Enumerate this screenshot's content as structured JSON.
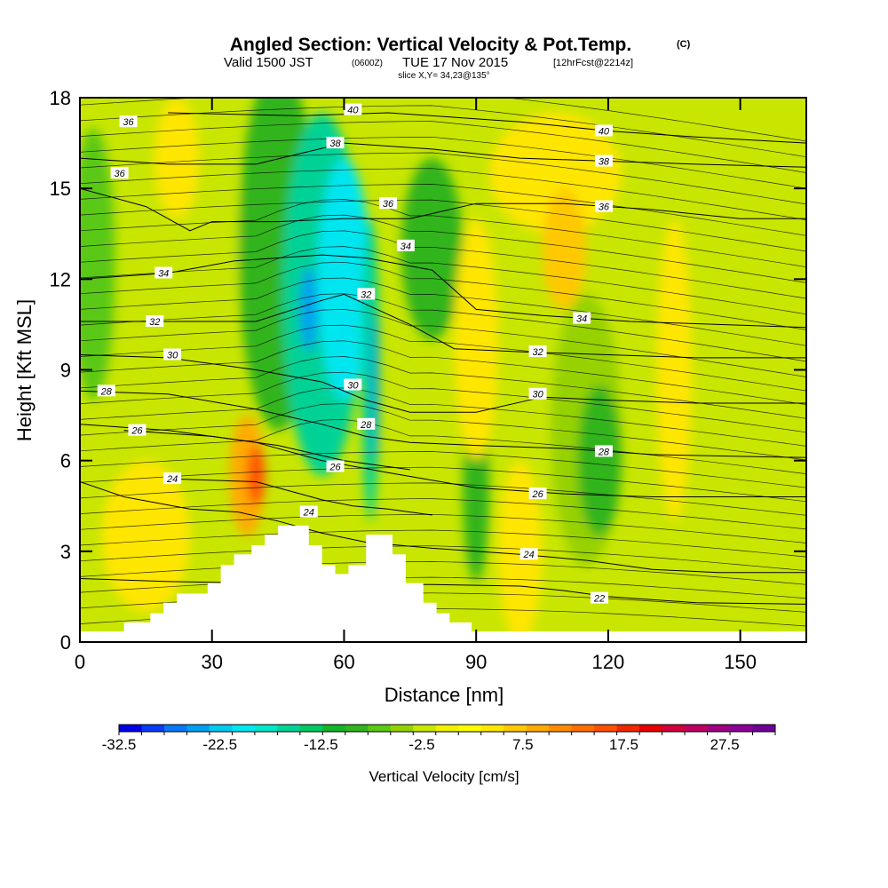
{
  "title": {
    "main": "Angled Section: Vertical Velocity & Pot.Temp.",
    "main_unit": "(C)",
    "valid_prefix": "Valid 1500 JST",
    "valid_zone": "(0600Z)",
    "valid_date": "TUE 17 Nov 2015",
    "valid_fcst": "[12hrFcst@2214z]",
    "slice": "slice X,Y= 34,23@135°"
  },
  "chart_data": {
    "type": "heatmap",
    "xlabel": "Distance [nm]",
    "ylabel": "Height [Kft MSL]",
    "xlim": [
      0,
      165
    ],
    "ylim": [
      0,
      18
    ],
    "x_ticks": [
      0,
      30,
      60,
      90,
      120,
      150
    ],
    "y_ticks": [
      0,
      3,
      6,
      9,
      12,
      15,
      18
    ],
    "colorbar": {
      "title": "Vertical Velocity [cm/s]",
      "tick_labels": [
        "-32.5",
        "-22.5",
        "-12.5",
        "-2.5",
        "7.5",
        "17.5",
        "27.5"
      ],
      "tick_values": [
        -32.5,
        -22.5,
        -12.5,
        -2.5,
        7.5,
        17.5,
        27.5
      ],
      "min": -32.5,
      "max": 32.5,
      "step": 2.5,
      "colors": [
        "#0000e6",
        "#0a3cf5",
        "#0a78f5",
        "#00a0f0",
        "#00c8f0",
        "#00e6f0",
        "#00e6c8",
        "#00d296",
        "#00c864",
        "#14b428",
        "#32b41e",
        "#5ac814",
        "#96d200",
        "#c8e600",
        "#f0f000",
        "#ffff00",
        "#ffe600",
        "#ffc800",
        "#ffaa00",
        "#ff8c00",
        "#ff6e00",
        "#ff5000",
        "#f02800",
        "#e60000",
        "#d2003c",
        "#be0064",
        "#a00082",
        "#8c0096",
        "#6e0096"
      ]
    },
    "theta_contours": [
      {
        "label": "22",
        "points": [
          [
            0,
            2.1
          ],
          [
            20,
            2.0
          ],
          [
            40,
            1.95
          ],
          [
            60,
            1.9
          ],
          [
            80,
            1.9
          ],
          [
            100,
            1.85
          ],
          [
            110,
            1.7
          ],
          [
            120,
            1.5
          ],
          [
            140,
            1.3
          ],
          [
            165,
            1.25
          ]
        ],
        "label_at": [
          118,
          1.45
        ]
      },
      {
        "label": "24",
        "points": [
          [
            0,
            5.3
          ],
          [
            10,
            4.8
          ],
          [
            25,
            4.4
          ],
          [
            36,
            4.3
          ],
          [
            45,
            4.0
          ],
          [
            55,
            3.6
          ],
          [
            65,
            3.3
          ],
          [
            80,
            3.1
          ],
          [
            100,
            2.9
          ],
          [
            115,
            2.7
          ],
          [
            130,
            2.4
          ],
          [
            145,
            2.3
          ],
          [
            165,
            2.3
          ]
        ],
        "label_at": [
          102,
          2.9
        ]
      },
      {
        "label": "24",
        "points": [
          [
            20,
            5.4
          ],
          [
            40,
            5.3
          ],
          [
            55,
            4.7
          ],
          [
            62,
            4.5
          ],
          [
            70,
            4.4
          ],
          [
            80,
            4.2
          ]
        ],
        "label_at": [
          52,
          4.3
        ]
      },
      {
        "label": "26",
        "points": [
          [
            0,
            7.2
          ],
          [
            20,
            7.0
          ],
          [
            40,
            6.6
          ],
          [
            55,
            6.0
          ],
          [
            70,
            5.6
          ],
          [
            90,
            5.1
          ],
          [
            110,
            4.9
          ],
          [
            130,
            4.8
          ],
          [
            165,
            4.8
          ]
        ],
        "label_at": [
          104,
          4.9
        ]
      },
      {
        "label": "26",
        "points": [
          [
            10,
            7.0
          ],
          [
            30,
            6.8
          ],
          [
            45,
            6.5
          ],
          [
            60,
            6.0
          ],
          [
            75,
            5.7
          ]
        ],
        "label_at": [
          58,
          5.8
        ]
      },
      {
        "label": "28",
        "points": [
          [
            0,
            8.3
          ],
          [
            20,
            8.2
          ],
          [
            40,
            7.7
          ],
          [
            55,
            7.2
          ],
          [
            65,
            6.8
          ],
          [
            75,
            6.6
          ],
          [
            90,
            6.5
          ],
          [
            110,
            6.4
          ],
          [
            130,
            6.2
          ],
          [
            165,
            6.1
          ]
        ],
        "label_at": [
          119,
          6.3
        ]
      },
      {
        "label": "30",
        "points": [
          [
            0,
            9.5
          ],
          [
            20,
            9.4
          ],
          [
            40,
            9.0
          ],
          [
            55,
            8.6
          ],
          [
            65,
            8.0
          ],
          [
            75,
            7.6
          ],
          [
            90,
            7.6
          ],
          [
            105,
            8.1
          ],
          [
            120,
            8.0
          ],
          [
            140,
            7.9
          ],
          [
            165,
            7.9
          ]
        ],
        "label_at": [
          104,
          8.2
        ]
      },
      {
        "label": "32",
        "points": [
          [
            0,
            10.6
          ],
          [
            20,
            10.6
          ],
          [
            40,
            10.6
          ],
          [
            55,
            11.3
          ],
          [
            60,
            11.5
          ],
          [
            75,
            10.5
          ],
          [
            85,
            9.7
          ],
          [
            100,
            9.6
          ],
          [
            120,
            9.5
          ],
          [
            140,
            9.4
          ],
          [
            165,
            9.4
          ]
        ],
        "label_at": [
          104,
          9.6
        ]
      },
      {
        "label": "34",
        "points": [
          [
            0,
            12.0
          ],
          [
            20,
            12.2
          ],
          [
            35,
            12.6
          ],
          [
            55,
            12.8
          ],
          [
            65,
            12.7
          ],
          [
            80,
            12.3
          ],
          [
            90,
            11.0
          ],
          [
            105,
            10.8
          ],
          [
            125,
            10.6
          ],
          [
            145,
            10.5
          ],
          [
            165,
            10.4
          ]
        ],
        "label_at": [
          114,
          10.7
        ]
      },
      {
        "label": "36",
        "points": [
          [
            0,
            15.0
          ],
          [
            15,
            14.4
          ],
          [
            25,
            13.6
          ],
          [
            30,
            13.9
          ],
          [
            45,
            13.9
          ],
          [
            60,
            14.0
          ],
          [
            75,
            14.0
          ],
          [
            90,
            14.5
          ],
          [
            110,
            14.5
          ],
          [
            130,
            14.3
          ],
          [
            150,
            14.0
          ],
          [
            165,
            14.0
          ]
        ],
        "label_at": [
          119,
          14.4
        ]
      },
      {
        "label": "38",
        "points": [
          [
            0,
            16.0
          ],
          [
            20,
            15.8
          ],
          [
            40,
            15.8
          ],
          [
            60,
            16.5
          ],
          [
            80,
            16.3
          ],
          [
            100,
            16.0
          ],
          [
            120,
            15.9
          ],
          [
            140,
            15.8
          ],
          [
            165,
            15.7
          ]
        ],
        "label_at": [
          119,
          15.9
        ]
      },
      {
        "label": "40",
        "points": [
          [
            20,
            17.5
          ],
          [
            50,
            17.4
          ],
          [
            70,
            17.5
          ],
          [
            100,
            17.2
          ],
          [
            120,
            16.9
          ],
          [
            140,
            16.7
          ],
          [
            165,
            16.5
          ]
        ],
        "label_at": [
          119,
          16.9
        ]
      }
    ],
    "extra_contour_labels": [
      {
        "label": "36",
        "at": [
          11,
          17.2
        ]
      },
      {
        "label": "36",
        "at": [
          9,
          15.5
        ]
      },
      {
        "label": "34",
        "at": [
          19,
          12.2
        ]
      },
      {
        "label": "32",
        "at": [
          17,
          10.6
        ]
      },
      {
        "label": "30",
        "at": [
          21,
          9.5
        ]
      },
      {
        "label": "28",
        "at": [
          6,
          8.3
        ]
      },
      {
        "label": "26",
        "at": [
          13,
          7.0
        ]
      },
      {
        "label": "24",
        "at": [
          21,
          5.4
        ]
      },
      {
        "label": "40",
        "at": [
          62,
          17.6
        ]
      },
      {
        "label": "38",
        "at": [
          58,
          16.5
        ]
      },
      {
        "label": "36",
        "at": [
          70,
          14.5
        ]
      },
      {
        "label": "34",
        "at": [
          74,
          13.1
        ]
      },
      {
        "label": "32",
        "at": [
          65,
          11.5
        ]
      },
      {
        "label": "30",
        "at": [
          62,
          8.5
        ]
      },
      {
        "label": "28",
        "at": [
          65,
          7.2
        ]
      }
    ],
    "terrain_heights_kft": [
      [
        0,
        0.35
      ],
      [
        10,
        0.35
      ],
      [
        10,
        0.65
      ],
      [
        16,
        0.65
      ],
      [
        16,
        0.95
      ],
      [
        19,
        0.95
      ],
      [
        19,
        1.3
      ],
      [
        22,
        1.3
      ],
      [
        22,
        1.6
      ],
      [
        29,
        1.6
      ],
      [
        29,
        1.95
      ],
      [
        32,
        1.95
      ],
      [
        32,
        2.55
      ],
      [
        35,
        2.55
      ],
      [
        35,
        2.9
      ],
      [
        39,
        2.9
      ],
      [
        39,
        3.2
      ],
      [
        42,
        3.2
      ],
      [
        42,
        3.55
      ],
      [
        45,
        3.55
      ],
      [
        45,
        3.85
      ],
      [
        52,
        3.85
      ],
      [
        52,
        3.2
      ],
      [
        55,
        3.2
      ],
      [
        55,
        2.55
      ],
      [
        58,
        2.55
      ],
      [
        58,
        2.25
      ],
      [
        61,
        2.25
      ],
      [
        61,
        2.55
      ],
      [
        65,
        2.55
      ],
      [
        65,
        3.55
      ],
      [
        71,
        3.55
      ],
      [
        71,
        2.9
      ],
      [
        74,
        2.9
      ],
      [
        74,
        1.95
      ],
      [
        78,
        1.95
      ],
      [
        78,
        1.3
      ],
      [
        81,
        1.3
      ],
      [
        81,
        0.95
      ],
      [
        84,
        0.95
      ],
      [
        84,
        0.65
      ],
      [
        89,
        0.65
      ],
      [
        89,
        0.35
      ],
      [
        165,
        0.35
      ]
    ],
    "velocity_features": [
      {
        "cx": 3,
        "cy": 12.5,
        "rx": 5,
        "ry": 4.5,
        "value": -7.5
      },
      {
        "cx": 30,
        "cy": 13.5,
        "rx": 6,
        "ry": 4.0,
        "value": -2.5
      },
      {
        "cx": 45,
        "cy": 13.0,
        "rx": 9,
        "ry": 6.0,
        "value": -10.0
      },
      {
        "cx": 55,
        "cy": 11.5,
        "rx": 9,
        "ry": 6.0,
        "value": -15.0
      },
      {
        "cx": 60,
        "cy": 12.0,
        "rx": 6,
        "ry": 4.0,
        "value": -20.0
      },
      {
        "cx": 52,
        "cy": 11.0,
        "rx": 2,
        "ry": 1.4,
        "value": -25.0
      },
      {
        "cx": 66,
        "cy": 9.0,
        "rx": 2,
        "ry": 5.0,
        "value": -15.0
      },
      {
        "cx": 67,
        "cy": 8.5,
        "rx": 0.8,
        "ry": 2.5,
        "value": -25.0
      },
      {
        "cx": 80,
        "cy": 13.0,
        "rx": 7,
        "ry": 3.0,
        "value": -10.0
      },
      {
        "cx": 90,
        "cy": 5.0,
        "rx": 3,
        "ry": 3.0,
        "value": -10.0
      },
      {
        "cx": 115,
        "cy": 7.0,
        "rx": 8,
        "ry": 4.5,
        "value": -5.0
      },
      {
        "cx": 118,
        "cy": 6.0,
        "rx": 5,
        "ry": 2.5,
        "value": -10.0
      },
      {
        "cx": 150,
        "cy": 14.0,
        "rx": 12,
        "ry": 3.0,
        "value": -2.5
      },
      {
        "cx": 22,
        "cy": 16.0,
        "rx": 5,
        "ry": 2.0,
        "value": 5.0
      },
      {
        "cx": 38,
        "cy": 5.5,
        "rx": 4,
        "ry": 2.0,
        "value": 10.0
      },
      {
        "cx": 40,
        "cy": 5.5,
        "rx": 2,
        "ry": 1.0,
        "value": 15.0
      },
      {
        "cx": 15,
        "cy": 3.5,
        "rx": 10,
        "ry": 2.5,
        "value": 5.0
      },
      {
        "cx": 90,
        "cy": 10.0,
        "rx": 5,
        "ry": 4.0,
        "value": 5.0
      },
      {
        "cx": 108,
        "cy": 15.5,
        "rx": 15,
        "ry": 2.0,
        "value": 5.0
      },
      {
        "cx": 110,
        "cy": 13.0,
        "rx": 5,
        "ry": 2.0,
        "value": 7.5
      },
      {
        "cx": 135,
        "cy": 9.0,
        "rx": 4,
        "ry": 5.0,
        "value": 5.0
      },
      {
        "cx": 100,
        "cy": 3.0,
        "rx": 5,
        "ry": 3.0,
        "value": 5.0
      }
    ]
  }
}
